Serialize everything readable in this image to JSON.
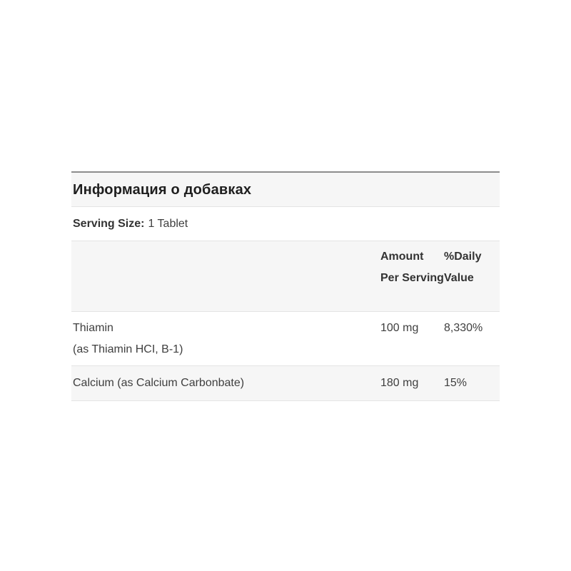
{
  "table": {
    "title": "Информация о добавках",
    "serving": {
      "label": "Serving Size:",
      "value": "1 Tablet"
    },
    "columns": {
      "amount": "Amount Per Serving",
      "daily": "%Daily Value"
    },
    "rows": [
      {
        "name": "Thiamin",
        "name_detail": "(as Thiamin HCI, B-1)",
        "amount": "100 mg",
        "daily": "8,330%"
      },
      {
        "name": "Calcium (as Calcium Carbonbate)",
        "amount": "180 mg",
        "daily": "15%"
      }
    ],
    "colors": {
      "stripe_background": "#f6f6f6",
      "divider": "#e4e4e4",
      "top_border": "#8c8c8c",
      "body_text": "#3f3f3f",
      "title_text": "#1e1e1e"
    }
  }
}
